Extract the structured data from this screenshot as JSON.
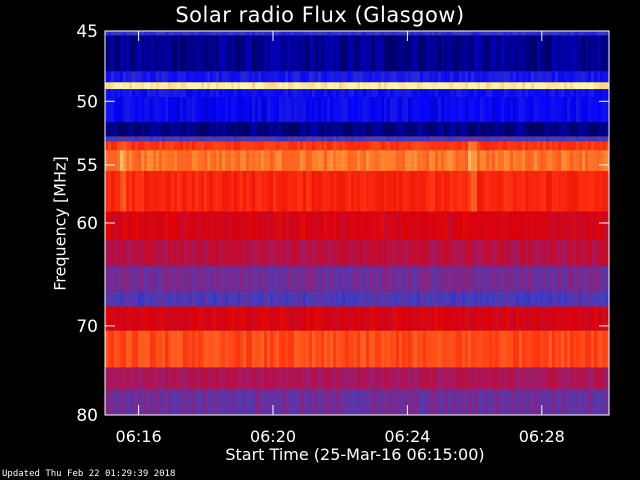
{
  "chart_data": {
    "type": "heatmap",
    "title": "Solar radio Flux (Glasgow)",
    "ylabel": "Frequency [MHz]",
    "xlabel": "Start Time (25-Mar-16 06:15:00)",
    "y_scale": "log",
    "ylim": [
      45,
      80
    ],
    "xlim": [
      "06:15:00",
      "06:30:00"
    ],
    "y_ticks": [
      45,
      50,
      55,
      60,
      70,
      80
    ],
    "y_tick_labels": [
      "45",
      "50",
      "55",
      "60",
      "70",
      "80"
    ],
    "x_ticks": [
      "06:16",
      "06:20",
      "06:24",
      "06:28"
    ],
    "x_tick_labels": [
      "06:16",
      "06:20",
      "06:24",
      "06:28"
    ],
    "colormap": [
      "#000050",
      "#0000ff",
      "#4040c0",
      "#a01a6a",
      "#e00000",
      "#ff3010",
      "#ff9030",
      "#ffffb0"
    ],
    "bands": [
      {
        "f_from": 45.0,
        "f_to": 45.3,
        "level": 0.25
      },
      {
        "f_from": 45.3,
        "f_to": 47.8,
        "level": 0.05
      },
      {
        "f_from": 47.8,
        "f_to": 48.6,
        "level": 0.2
      },
      {
        "f_from": 48.6,
        "f_to": 49.1,
        "level": 0.98
      },
      {
        "f_from": 49.1,
        "f_to": 49.7,
        "level": 0.18
      },
      {
        "f_from": 49.7,
        "f_to": 51.6,
        "level": 0.16
      },
      {
        "f_from": 51.6,
        "f_to": 52.7,
        "level": 0.04
      },
      {
        "f_from": 52.7,
        "f_to": 53.1,
        "level": 0.3
      },
      {
        "f_from": 53.1,
        "f_to": 53.8,
        "level": 0.72
      },
      {
        "f_from": 53.8,
        "f_to": 55.5,
        "level": 0.82
      },
      {
        "f_from": 55.5,
        "f_to": 59.0,
        "level": 0.68
      },
      {
        "f_from": 59.0,
        "f_to": 61.5,
        "level": 0.55
      },
      {
        "f_from": 61.5,
        "f_to": 64.0,
        "level": 0.48
      },
      {
        "f_from": 64.0,
        "f_to": 66.5,
        "level": 0.36
      },
      {
        "f_from": 66.5,
        "f_to": 68.0,
        "level": 0.3
      },
      {
        "f_from": 68.0,
        "f_to": 70.5,
        "level": 0.55
      },
      {
        "f_from": 70.5,
        "f_to": 74.5,
        "level": 0.75
      },
      {
        "f_from": 74.5,
        "f_to": 77.0,
        "level": 0.45
      },
      {
        "f_from": 77.0,
        "f_to": 80.0,
        "level": 0.35
      }
    ],
    "flare_times": [
      "06:15:30",
      "06:25:53"
    ]
  },
  "footer": {
    "updated": "Updated Thu Feb 22 01:29:39 2018"
  }
}
